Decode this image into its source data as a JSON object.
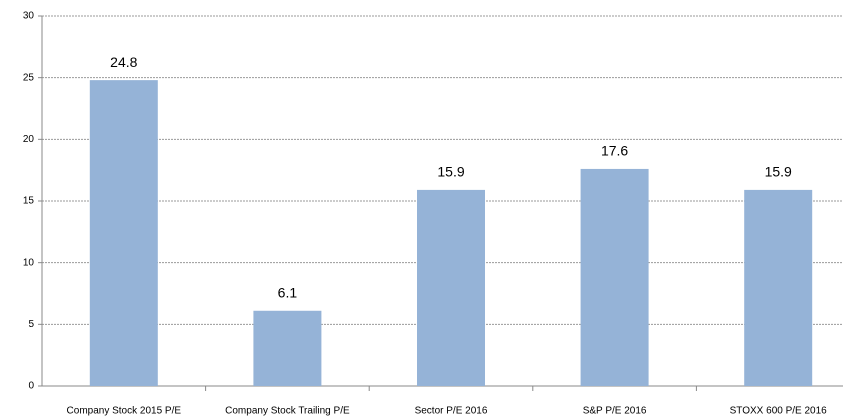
{
  "chart_data": {
    "type": "bar",
    "categories": [
      "Company Stock 2015 P/E",
      "Company Stock Trailing  P/E",
      "Sector P/E 2016",
      "S&P P/E 2016",
      "STOXX 600 P/E 2016"
    ],
    "values": [
      24.8,
      6.1,
      15.9,
      17.6,
      15.9
    ],
    "color": "#95b3d7",
    "ylim": [
      0,
      30
    ],
    "yticks": [
      0,
      5,
      10,
      15,
      20,
      25,
      30
    ],
    "grid": true
  }
}
